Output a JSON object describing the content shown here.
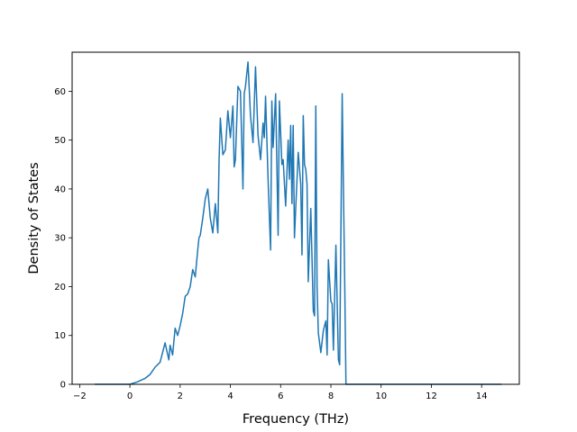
{
  "chart_data": {
    "type": "line",
    "title": "",
    "xlabel": "Frequency (THz)",
    "ylabel": "Density of States",
    "xlim": [
      -2.3,
      15.5
    ],
    "ylim": [
      0,
      68
    ],
    "xticks": [
      -2,
      0,
      2,
      4,
      6,
      8,
      10,
      12,
      14
    ],
    "yticks": [
      0,
      10,
      20,
      30,
      40,
      50,
      60
    ],
    "xtick_labels": [
      "−2",
      "0",
      "2",
      "4",
      "6",
      "8",
      "10",
      "12",
      "14"
    ],
    "ytick_labels": [
      "0",
      "10",
      "20",
      "30",
      "40",
      "50",
      "60"
    ],
    "grid": false,
    "legend": "none",
    "series": [
      {
        "color": "#1f77b4",
        "x": [
          -1.4,
          -0.5,
          0.0,
          0.3,
          0.6,
          0.8,
          1.0,
          1.2,
          1.4,
          1.55,
          1.6,
          1.7,
          1.8,
          1.9,
          2.0,
          2.1,
          2.2,
          2.3,
          2.4,
          2.5,
          2.6,
          2.7,
          2.75,
          2.8,
          2.9,
          3.0,
          3.1,
          3.2,
          3.3,
          3.4,
          3.5,
          3.55,
          3.6,
          3.7,
          3.8,
          3.9,
          4.0,
          4.1,
          4.15,
          4.2,
          4.3,
          4.4,
          4.5,
          4.55,
          4.6,
          4.7,
          4.8,
          4.9,
          5.0,
          5.1,
          5.2,
          5.3,
          5.35,
          5.4,
          5.5,
          5.6,
          5.65,
          5.7,
          5.8,
          5.9,
          5.95,
          6.05,
          6.1,
          6.2,
          6.3,
          6.35,
          6.4,
          6.45,
          6.5,
          6.55,
          6.6,
          6.7,
          6.8,
          6.85,
          6.9,
          6.95,
          7.0,
          7.05,
          7.1,
          7.2,
          7.3,
          7.35,
          7.4,
          7.45,
          7.5,
          7.6,
          7.7,
          7.8,
          7.85,
          7.9,
          8.0,
          8.05,
          8.1,
          8.2,
          8.3,
          8.35,
          8.45,
          8.5,
          8.55,
          8.6,
          8.65,
          8.7,
          8.8,
          8.85,
          8.9,
          8.95,
          9.0,
          9.05,
          9.1,
          9.15,
          9.2,
          9.25,
          9.35,
          9.4,
          9.5,
          9.55,
          9.55,
          10.0,
          12.0,
          14.0,
          14.8
        ],
        "y": [
          0,
          0,
          0,
          0.5,
          1.2,
          2.0,
          3.5,
          4.5,
          8.5,
          5.0,
          8.0,
          6.0,
          11.5,
          10.0,
          12.0,
          14.5,
          18.0,
          18.5,
          20.0,
          23.5,
          22.0,
          27.5,
          30.0,
          30.5,
          34.0,
          38.0,
          40.0,
          34.0,
          31.0,
          37.0,
          31.0,
          46.0,
          54.5,
          47.0,
          48.0,
          56.0,
          50.5,
          57.0,
          44.5,
          46.0,
          61.0,
          60.0,
          40.0,
          59.5,
          61.0,
          66.0,
          55.0,
          49.5,
          65.0,
          51.0,
          46.0,
          53.5,
          50.5,
          59.0,
          42.0,
          27.5,
          58.0,
          48.5,
          59.5,
          30.5,
          58.0,
          45.0,
          46.0,
          36.5,
          50.0,
          42.0,
          53.0,
          37.0,
          53.0,
          30.0,
          36.0,
          47.5,
          41.0,
          26.5,
          55.0,
          45.0,
          44.0,
          41.0,
          21.0,
          36.0,
          15.0,
          14.0,
          57.0,
          20.0,
          10.5,
          6.5,
          11.0,
          13.0,
          6.0,
          25.5,
          17.0,
          16.5,
          7.0,
          28.5,
          5.0,
          4.0,
          59.5,
          40.0,
          21.0,
          0.0,
          0.0,
          0.0,
          0.0,
          0.0,
          0.0,
          0.0,
          0.0,
          0.0,
          0.0,
          0.0,
          0.0,
          0.0,
          0.0,
          0.0,
          0.0,
          0.0,
          0.0,
          0.0,
          0.0,
          0.0,
          0.0
        ]
      }
    ]
  }
}
